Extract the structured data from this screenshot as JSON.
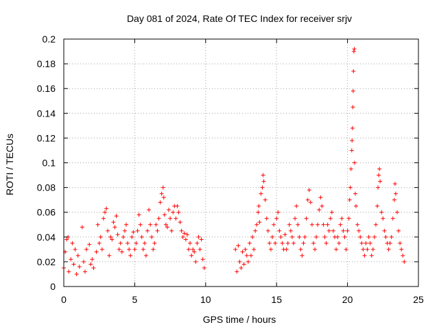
{
  "chart_data": {
    "type": "scatter",
    "title": "Day 081 of 2024, Rate Of TEC Index for receiver srjv",
    "xlabel": "GPS time / hours",
    "ylabel": "ROTI / TECUs",
    "xlim": [
      0,
      25
    ],
    "ylim": [
      0,
      0.2
    ],
    "x_ticks": [
      0,
      5,
      10,
      15,
      20,
      25
    ],
    "x_tick_labels": [
      "0",
      "5",
      "10",
      "15",
      "20",
      "25"
    ],
    "y_ticks": [
      0,
      0.02,
      0.04,
      0.06,
      0.08,
      0.1,
      0.12,
      0.14,
      0.16,
      0.18,
      0.2
    ],
    "y_tick_labels": [
      "0",
      "0.02",
      "0.04",
      "0.06",
      "0.08",
      "0.1",
      "0.12",
      "0.14",
      "0.16",
      "0.18",
      "0.2"
    ],
    "grid": true,
    "marker": "plus",
    "series_color": "#ff0000",
    "data_gap_hours": [
      10.0,
      12.1
    ],
    "series": [
      {
        "name": "ROTI",
        "points": [
          [
            0.0,
            0.015
          ],
          [
            0.1,
            0.028
          ],
          [
            0.2,
            0.038
          ],
          [
            0.3,
            0.04
          ],
          [
            0.35,
            0.012
          ],
          [
            0.5,
            0.022
          ],
          [
            0.6,
            0.035
          ],
          [
            0.7,
            0.018
          ],
          [
            0.8,
            0.03
          ],
          [
            0.9,
            0.01
          ],
          [
            1.0,
            0.025
          ],
          [
            1.1,
            0.016
          ],
          [
            1.3,
            0.048
          ],
          [
            1.4,
            0.02
          ],
          [
            1.5,
            0.012
          ],
          [
            1.6,
            0.03
          ],
          [
            1.8,
            0.034
          ],
          [
            1.9,
            0.018
          ],
          [
            2.0,
            0.022
          ],
          [
            2.1,
            0.015
          ],
          [
            2.3,
            0.028
          ],
          [
            2.4,
            0.05
          ],
          [
            2.5,
            0.035
          ],
          [
            2.6,
            0.04
          ],
          [
            2.7,
            0.03
          ],
          [
            2.8,
            0.055
          ],
          [
            2.9,
            0.06
          ],
          [
            3.0,
            0.063
          ],
          [
            3.1,
            0.045
          ],
          [
            3.2,
            0.025
          ],
          [
            3.3,
            0.04
          ],
          [
            3.4,
            0.038
          ],
          [
            3.5,
            0.052
          ],
          [
            3.6,
            0.048
          ],
          [
            3.7,
            0.057
          ],
          [
            3.8,
            0.042
          ],
          [
            3.9,
            0.03
          ],
          [
            4.0,
            0.035
          ],
          [
            4.1,
            0.028
          ],
          [
            4.2,
            0.04
          ],
          [
            4.3,
            0.045
          ],
          [
            4.4,
            0.05
          ],
          [
            4.5,
            0.035
          ],
          [
            4.6,
            0.03
          ],
          [
            4.7,
            0.025
          ],
          [
            4.8,
            0.04
          ],
          [
            4.9,
            0.044
          ],
          [
            5.0,
            0.03
          ],
          [
            5.1,
            0.035
          ],
          [
            5.2,
            0.045
          ],
          [
            5.3,
            0.058
          ],
          [
            5.4,
            0.05
          ],
          [
            5.5,
            0.04
          ],
          [
            5.6,
            0.03
          ],
          [
            5.7,
            0.035
          ],
          [
            5.8,
            0.025
          ],
          [
            5.9,
            0.045
          ],
          [
            6.0,
            0.062
          ],
          [
            6.1,
            0.05
          ],
          [
            6.2,
            0.04
          ],
          [
            6.3,
            0.03
          ],
          [
            6.4,
            0.035
          ],
          [
            6.5,
            0.05
          ],
          [
            6.6,
            0.045
          ],
          [
            6.7,
            0.055
          ],
          [
            6.8,
            0.068
          ],
          [
            6.9,
            0.075
          ],
          [
            7.0,
            0.08
          ],
          [
            7.05,
            0.072
          ],
          [
            7.1,
            0.058
          ],
          [
            7.2,
            0.05
          ],
          [
            7.3,
            0.048
          ],
          [
            7.4,
            0.062
          ],
          [
            7.5,
            0.055
          ],
          [
            7.6,
            0.045
          ],
          [
            7.7,
            0.06
          ],
          [
            7.8,
            0.065
          ],
          [
            7.9,
            0.055
          ],
          [
            8.0,
            0.065
          ],
          [
            8.1,
            0.06
          ],
          [
            8.2,
            0.052
          ],
          [
            8.3,
            0.045
          ],
          [
            8.4,
            0.04
          ],
          [
            8.5,
            0.043
          ],
          [
            8.6,
            0.038
          ],
          [
            8.7,
            0.042
          ],
          [
            8.8,
            0.03
          ],
          [
            8.9,
            0.035
          ],
          [
            9.0,
            0.025
          ],
          [
            9.1,
            0.03
          ],
          [
            9.2,
            0.028
          ],
          [
            9.3,
            0.02
          ],
          [
            9.4,
            0.035
          ],
          [
            9.5,
            0.04
          ],
          [
            9.6,
            0.03
          ],
          [
            9.7,
            0.038
          ],
          [
            9.8,
            0.022
          ],
          [
            9.9,
            0.015
          ],
          [
            12.1,
            0.03
          ],
          [
            12.2,
            0.012
          ],
          [
            12.3,
            0.033
          ],
          [
            12.4,
            0.02
          ],
          [
            12.5,
            0.015
          ],
          [
            12.6,
            0.028
          ],
          [
            12.7,
            0.018
          ],
          [
            12.8,
            0.03
          ],
          [
            12.9,
            0.025
          ],
          [
            13.0,
            0.02
          ],
          [
            13.1,
            0.035
          ],
          [
            13.2,
            0.025
          ],
          [
            13.3,
            0.04
          ],
          [
            13.4,
            0.03
          ],
          [
            13.5,
            0.045
          ],
          [
            13.6,
            0.05
          ],
          [
            13.7,
            0.06
          ],
          [
            13.75,
            0.065
          ],
          [
            13.8,
            0.052
          ],
          [
            13.9,
            0.075
          ],
          [
            14.0,
            0.08
          ],
          [
            14.05,
            0.09
          ],
          [
            14.1,
            0.085
          ],
          [
            14.2,
            0.07
          ],
          [
            14.3,
            0.055
          ],
          [
            14.4,
            0.045
          ],
          [
            14.5,
            0.035
          ],
          [
            14.6,
            0.03
          ],
          [
            14.7,
            0.04
          ],
          [
            14.8,
            0.05
          ],
          [
            14.9,
            0.035
          ],
          [
            15.0,
            0.055
          ],
          [
            15.1,
            0.06
          ],
          [
            15.2,
            0.045
          ],
          [
            15.3,
            0.04
          ],
          [
            15.4,
            0.035
          ],
          [
            15.5,
            0.03
          ],
          [
            15.6,
            0.042
          ],
          [
            15.7,
            0.03
          ],
          [
            15.8,
            0.035
          ],
          [
            15.9,
            0.05
          ],
          [
            16.0,
            0.045
          ],
          [
            16.1,
            0.04
          ],
          [
            16.2,
            0.035
          ],
          [
            16.3,
            0.055
          ],
          [
            16.4,
            0.065
          ],
          [
            16.5,
            0.05
          ],
          [
            16.6,
            0.04
          ],
          [
            16.7,
            0.03
          ],
          [
            16.8,
            0.025
          ],
          [
            16.9,
            0.035
          ],
          [
            17.0,
            0.04
          ],
          [
            17.1,
            0.055
          ],
          [
            17.2,
            0.07
          ],
          [
            17.3,
            0.078
          ],
          [
            17.4,
            0.068
          ],
          [
            17.5,
            0.05
          ],
          [
            17.6,
            0.035
          ],
          [
            17.7,
            0.03
          ],
          [
            17.8,
            0.04
          ],
          [
            17.9,
            0.05
          ],
          [
            18.0,
            0.062
          ],
          [
            18.1,
            0.072
          ],
          [
            18.2,
            0.065
          ],
          [
            18.3,
            0.05
          ],
          [
            18.4,
            0.04
          ],
          [
            18.5,
            0.035
          ],
          [
            18.6,
            0.05
          ],
          [
            18.7,
            0.045
          ],
          [
            18.8,
            0.055
          ],
          [
            18.9,
            0.06
          ],
          [
            19.0,
            0.045
          ],
          [
            19.1,
            0.04
          ],
          [
            19.2,
            0.03
          ],
          [
            19.3,
            0.04
          ],
          [
            19.4,
            0.035
          ],
          [
            19.5,
            0.05
          ],
          [
            19.6,
            0.055
          ],
          [
            19.7,
            0.045
          ],
          [
            19.8,
            0.04
          ],
          [
            19.9,
            0.03
          ],
          [
            20.0,
            0.045
          ],
          [
            20.1,
            0.055
          ],
          [
            20.15,
            0.07
          ],
          [
            20.2,
            0.08
          ],
          [
            20.25,
            0.095
          ],
          [
            20.3,
            0.11
          ],
          [
            20.32,
            0.118
          ],
          [
            20.35,
            0.128
          ],
          [
            20.38,
            0.145
          ],
          [
            20.4,
            0.158
          ],
          [
            20.42,
            0.174
          ],
          [
            20.45,
            0.19
          ],
          [
            20.48,
            0.192
          ],
          [
            20.5,
            0.1
          ],
          [
            20.55,
            0.075
          ],
          [
            20.6,
            0.065
          ],
          [
            20.7,
            0.05
          ],
          [
            20.8,
            0.045
          ],
          [
            20.9,
            0.04
          ],
          [
            21.0,
            0.035
          ],
          [
            21.1,
            0.03
          ],
          [
            21.2,
            0.025
          ],
          [
            21.3,
            0.035
          ],
          [
            21.4,
            0.03
          ],
          [
            21.5,
            0.04
          ],
          [
            21.6,
            0.035
          ],
          [
            21.7,
            0.025
          ],
          [
            21.8,
            0.03
          ],
          [
            21.9,
            0.04
          ],
          [
            22.0,
            0.05
          ],
          [
            22.1,
            0.065
          ],
          [
            22.15,
            0.08
          ],
          [
            22.2,
            0.09
          ],
          [
            22.25,
            0.095
          ],
          [
            22.3,
            0.085
          ],
          [
            22.4,
            0.06
          ],
          [
            22.5,
            0.055
          ],
          [
            22.6,
            0.045
          ],
          [
            22.7,
            0.04
          ],
          [
            22.8,
            0.035
          ],
          [
            22.9,
            0.03
          ],
          [
            23.0,
            0.035
          ],
          [
            23.1,
            0.04
          ],
          [
            23.2,
            0.055
          ],
          [
            23.3,
            0.07
          ],
          [
            23.35,
            0.083
          ],
          [
            23.4,
            0.075
          ],
          [
            23.5,
            0.06
          ],
          [
            23.6,
            0.045
          ],
          [
            23.7,
            0.035
          ],
          [
            23.8,
            0.03
          ],
          [
            23.9,
            0.025
          ],
          [
            24.0,
            0.02
          ]
        ]
      }
    ]
  }
}
